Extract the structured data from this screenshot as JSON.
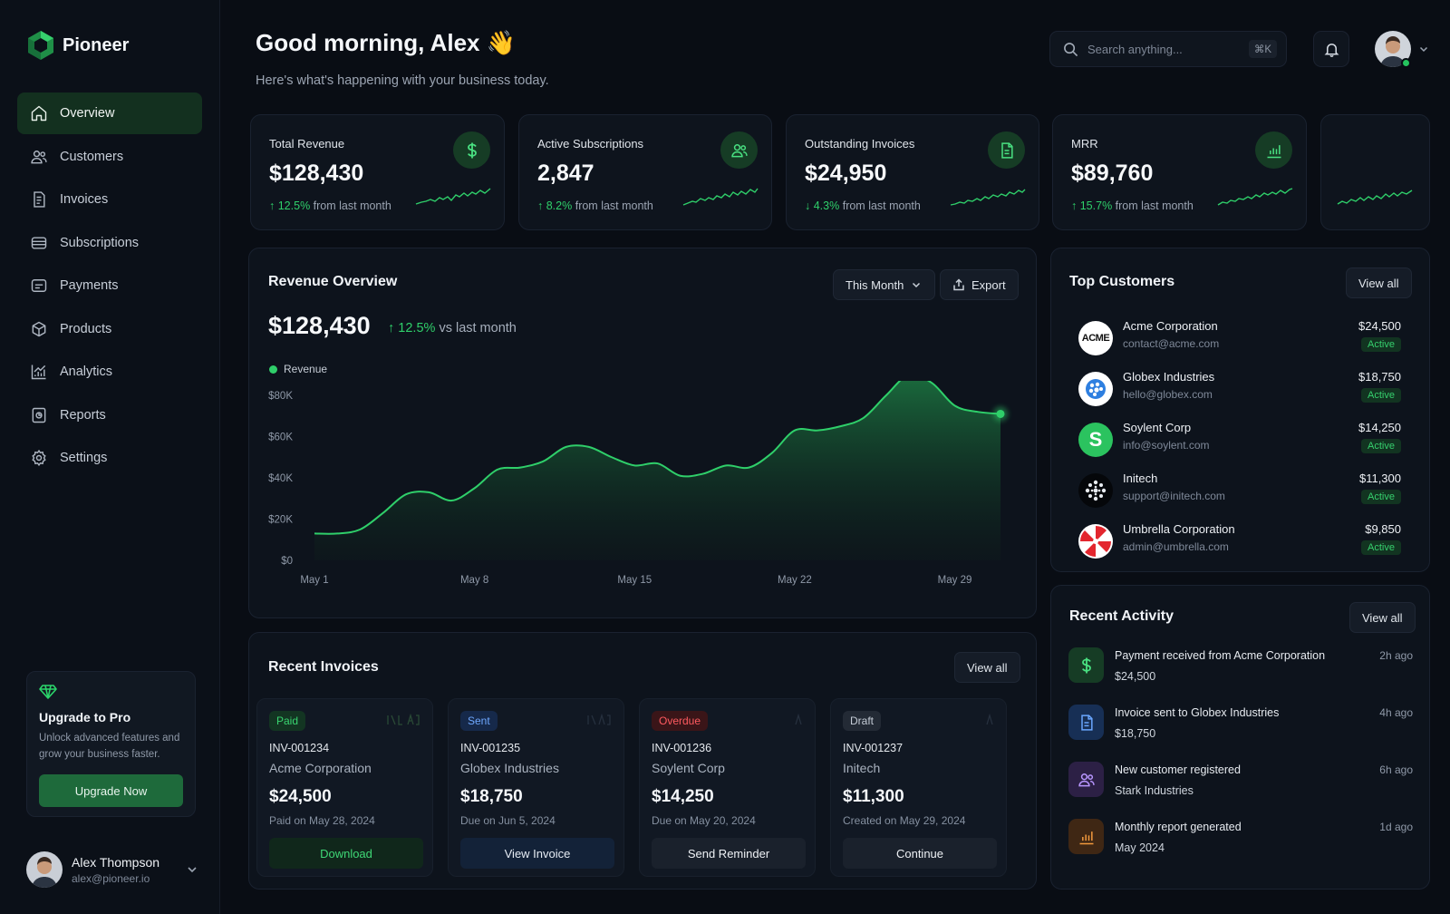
{
  "brand": {
    "name": "Pioneer"
  },
  "sidebar": {
    "items": [
      {
        "label": "Overview",
        "icon": "home-icon"
      },
      {
        "label": "Customers",
        "icon": "users-icon"
      },
      {
        "label": "Invoices",
        "icon": "invoice-icon"
      },
      {
        "label": "Subscriptions",
        "icon": "subscriptions-icon"
      },
      {
        "label": "Payments",
        "icon": "payment-icon"
      },
      {
        "label": "Products",
        "icon": "box-icon"
      },
      {
        "label": "Analytics",
        "icon": "chart-icon"
      },
      {
        "label": "Reports",
        "icon": "report-icon"
      },
      {
        "label": "Settings",
        "icon": "gear-icon"
      }
    ],
    "active": "Overview",
    "upgrade": {
      "title": "Upgrade to Pro",
      "text": "Unlock advanced features and grow your business faster.",
      "button": "Upgrade Now"
    },
    "user": {
      "name": "Alex Thompson",
      "email": "alex@pioneer.io"
    }
  },
  "header": {
    "greeting": "Good morning, Alex 👋",
    "subtitle": "Here's what's happening with your business today.",
    "search_placeholder": "Search anything...",
    "search_shortcut": "⌘K"
  },
  "stats": [
    {
      "label": "Total Revenue",
      "value": "$128,430",
      "arrow": "↑",
      "pct": "12.5%",
      "suffix": "from last month",
      "trend": "up",
      "icon": "dollar-icon"
    },
    {
      "label": "Active Subscriptions",
      "value": "2,847",
      "arrow": "↑",
      "pct": "8.2%",
      "suffix": "from last month",
      "trend": "up",
      "icon": "users-icon"
    },
    {
      "label": "Outstanding Invoices",
      "value": "$24,950",
      "arrow": "↓",
      "pct": "4.3%",
      "suffix": "from last month",
      "trend": "down",
      "icon": "document-icon"
    },
    {
      "label": "MRR",
      "value": "$89,760",
      "arrow": "↑",
      "pct": "15.7%",
      "suffix": "from last month",
      "trend": "up",
      "icon": "bar-chart-icon"
    }
  ],
  "revenue_overview": {
    "title": "Revenue Overview",
    "period": "This Month",
    "export": "Export",
    "total": "$128,430",
    "arrow": "↑",
    "pct": "12.5%",
    "suffix": "vs last month",
    "legend": "Revenue"
  },
  "chart_data": {
    "type": "area",
    "title": "",
    "xlabel": "",
    "ylabel": "",
    "x_ticks": [
      "May 1",
      "May 8",
      "May 15",
      "May 22",
      "May 29"
    ],
    "y_ticks": [
      "$0",
      "$20K",
      "$40K",
      "$60K",
      "$80K"
    ],
    "ylim": [
      0,
      80000
    ],
    "grid": false,
    "series": [
      {
        "name": "Revenue",
        "color": "#2fcf6a",
        "x": [
          "May 1",
          "May 2",
          "May 3",
          "May 4",
          "May 5",
          "May 6",
          "May 7",
          "May 8",
          "May 9",
          "May 10",
          "May 11",
          "May 12",
          "May 13",
          "May 14",
          "May 15",
          "May 16",
          "May 17",
          "May 18",
          "May 19",
          "May 20",
          "May 21",
          "May 22",
          "May 23",
          "May 24",
          "May 25",
          "May 26",
          "May 27",
          "May 28",
          "May 29",
          "May 30",
          "May 31"
        ],
        "values": [
          13000,
          13000,
          15000,
          23000,
          32000,
          33000,
          29000,
          35000,
          44000,
          45000,
          48000,
          55000,
          55000,
          50000,
          46000,
          47000,
          41000,
          42000,
          46000,
          45000,
          52000,
          63000,
          63000,
          65000,
          69000,
          80000,
          90000,
          86000,
          75000,
          72000,
          71000
        ]
      }
    ]
  },
  "top_customers": {
    "title": "Top Customers",
    "view_all": "View all",
    "rows": [
      {
        "name": "Acme Corporation",
        "email": "contact@acme.com",
        "amount": "$24,500",
        "status": "Active",
        "logo": "ACME"
      },
      {
        "name": "Globex Industries",
        "email": "hello@globex.com",
        "amount": "$18,750",
        "status": "Active",
        "logo": "globex-logo"
      },
      {
        "name": "Soylent Corp",
        "email": "info@soylent.com",
        "amount": "$14,250",
        "status": "Active",
        "logo": "S"
      },
      {
        "name": "Initech",
        "email": "support@initech.com",
        "amount": "$11,300",
        "status": "Active",
        "logo": "initech-logo"
      },
      {
        "name": "Umbrella Corporation",
        "email": "admin@umbrella.com",
        "amount": "$9,850",
        "status": "Active",
        "logo": "umbrella-logo"
      }
    ]
  },
  "recent_activity": {
    "title": "Recent Activity",
    "view_all": "View all",
    "rows": [
      {
        "title": "Payment received from Acme Corporation",
        "sub": "$24,500",
        "time": "2h ago",
        "icon": "dollar-icon",
        "color": "#2fcf6a"
      },
      {
        "title": "Invoice sent to Globex Industries",
        "sub": "$18,750",
        "time": "4h ago",
        "icon": "document-icon",
        "color": "#4e8ef0"
      },
      {
        "title": "New customer registered",
        "sub": "Stark Industries",
        "time": "6h ago",
        "icon": "users-icon",
        "color": "#a47cf0"
      },
      {
        "title": "Monthly report generated",
        "sub": "May 2024",
        "time": "1d ago",
        "icon": "bar-chart-icon",
        "color": "#ec8a2f"
      }
    ]
  },
  "recent_invoices": {
    "title": "Recent Invoices",
    "view_all": "View all",
    "cards": [
      {
        "status": "Paid",
        "id": "INV-001234",
        "company": "Acme Corporation",
        "amount": "$24,500",
        "date": "Paid on May 28, 2024",
        "action": "Download",
        "tone": "paid"
      },
      {
        "status": "Sent",
        "id": "INV-001235",
        "company": "Globex Industries",
        "amount": "$18,750",
        "date": "Due on Jun 5, 2024",
        "action": "View Invoice",
        "tone": "sent"
      },
      {
        "status": "Overdue",
        "id": "INV-001236",
        "company": "Soylent Corp",
        "amount": "$14,250",
        "date": "Due on May 20, 2024",
        "action": "Send Reminder",
        "tone": "overdue"
      },
      {
        "status": "Draft",
        "id": "INV-001237",
        "company": "Initech",
        "amount": "$11,300",
        "date": "Created on May 29, 2024",
        "action": "Continue",
        "tone": "draft"
      }
    ]
  }
}
